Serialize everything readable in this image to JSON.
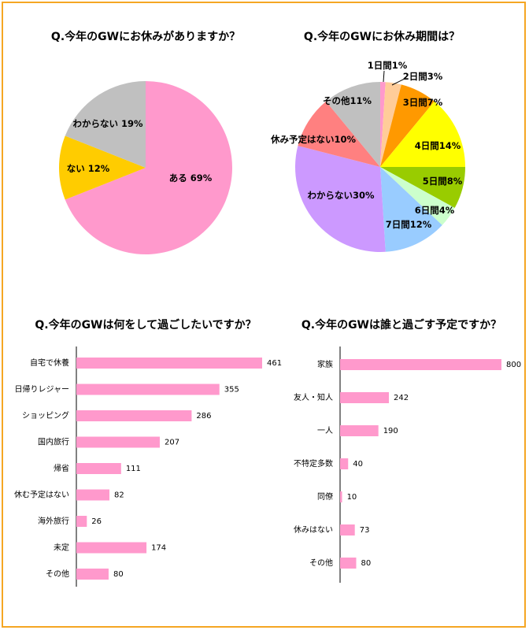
{
  "chart_data": [
    {
      "type": "pie",
      "title": "Q.今年のGWにお休みがありますか？",
      "categories": [
        "ある",
        "ない",
        "わからない"
      ],
      "values": [
        69,
        12,
        19
      ],
      "value_labels": [
        "69%",
        "12%",
        "19%"
      ],
      "colors": [
        "#ff99cc",
        "#ffcc00",
        "#c0c0c0"
      ]
    },
    {
      "type": "pie",
      "title": "Q.今年のGWにお休み期間は？",
      "categories": [
        "1日間",
        "2日間",
        "3日間",
        "4日間",
        "5日間",
        "6日間",
        "7日間",
        "わからない",
        "休み予定はない",
        "その他"
      ],
      "values": [
        1,
        3,
        7,
        14,
        8,
        4,
        12,
        30,
        10,
        11
      ],
      "value_labels": [
        "1%",
        "3%",
        "7%",
        "14%",
        "8%",
        "4%",
        "12%",
        "30%",
        "10%",
        "11%"
      ],
      "colors": [
        "#ff99cc",
        "#ffcc99",
        "#ff9900",
        "#ffff00",
        "#99cc00",
        "#ccffcc",
        "#99ccff",
        "#cc99ff",
        "#ff8080",
        "#c0c0c0"
      ]
    },
    {
      "type": "hbar",
      "title": "Q.今年のGWは何をして過ごしたいですか？",
      "categories": [
        "自宅で休養",
        "日帰りレジャー",
        "ショッピング",
        "国内旅行",
        "帰省",
        "休む予定はない",
        "海外旅行",
        "未定",
        "その他"
      ],
      "values": [
        461,
        355,
        286,
        207,
        111,
        82,
        26,
        174,
        80
      ],
      "color": "#ff99cc"
    },
    {
      "type": "hbar",
      "title": "Q.今年のGWは誰と過ごす予定ですか？",
      "categories": [
        "家族",
        "友人・知人",
        "一人",
        "不特定多数",
        "同僚",
        "休みはない",
        "その他"
      ],
      "values": [
        800,
        242,
        190,
        40,
        10,
        73,
        80
      ],
      "color": "#ff99cc"
    }
  ]
}
